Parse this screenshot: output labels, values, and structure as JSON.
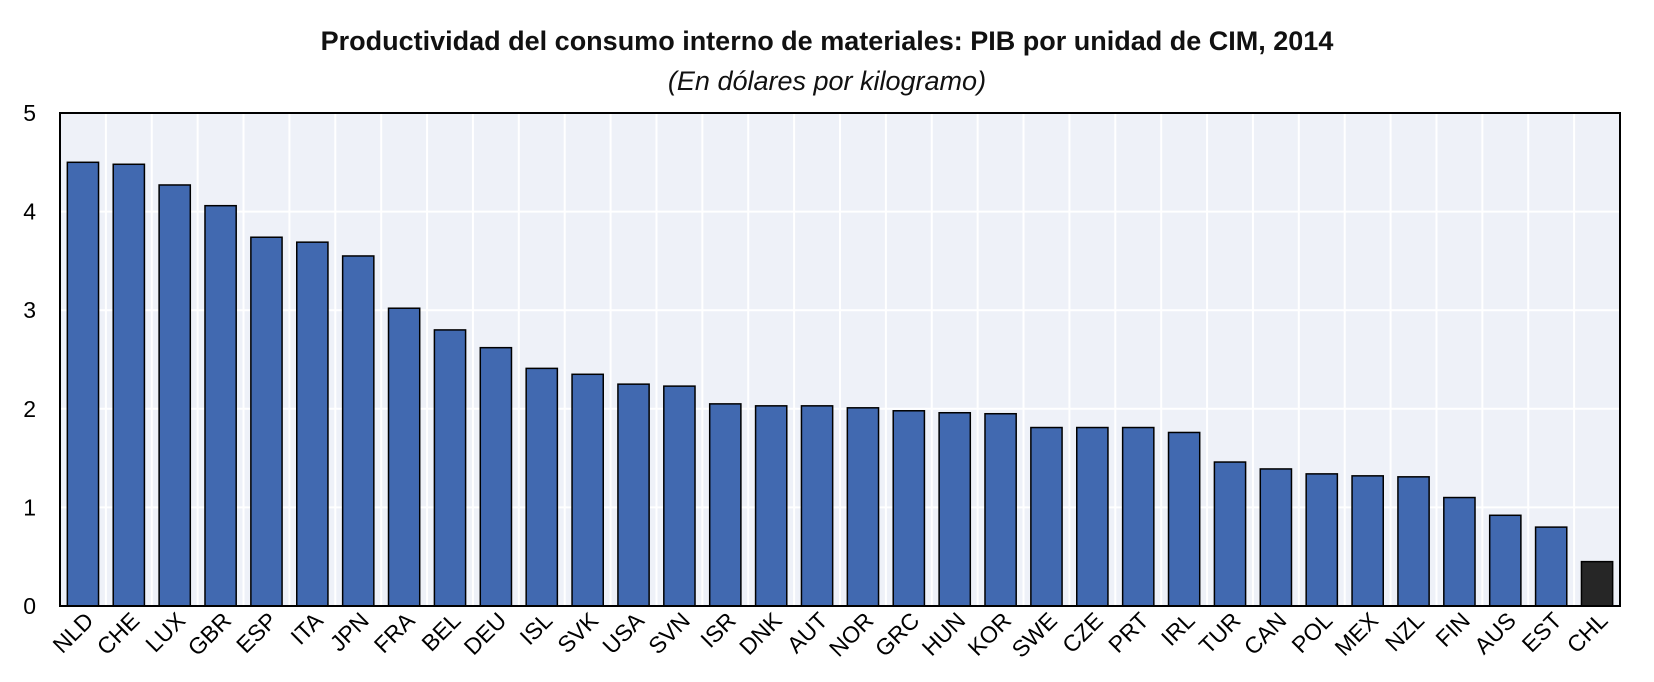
{
  "chart_data": {
    "type": "bar",
    "title": "Productividad del consumo interno de materiales: PIB por unidad de CIM, 2014",
    "subtitle": "(En dólares por kilogramo)",
    "categories": [
      "NLD",
      "CHE",
      "LUX",
      "GBR",
      "ESP",
      "ITA",
      "JPN",
      "FRA",
      "BEL",
      "DEU",
      "ISL",
      "SVK",
      "USA",
      "SVN",
      "ISR",
      "DNK",
      "AUT",
      "NOR",
      "GRC",
      "HUN",
      "KOR",
      "SWE",
      "CZE",
      "PRT",
      "IRL",
      "TUR",
      "CAN",
      "POL",
      "MEX",
      "NZL",
      "FIN",
      "AUS",
      "EST",
      "CHL"
    ],
    "values": [
      4.5,
      4.48,
      4.27,
      4.06,
      3.74,
      3.69,
      3.55,
      3.02,
      2.8,
      2.62,
      2.41,
      2.35,
      2.25,
      2.23,
      2.05,
      2.03,
      2.03,
      2.01,
      1.98,
      1.96,
      1.95,
      1.81,
      1.81,
      1.81,
      1.76,
      1.46,
      1.39,
      1.34,
      1.32,
      1.31,
      1.1,
      0.92,
      0.8,
      0.45
    ],
    "highlight": "CHL",
    "ylim": [
      0,
      5
    ],
    "yticks": [
      "0",
      "1",
      "2",
      "3",
      "4",
      "5"
    ],
    "xlabel": "",
    "ylabel": "",
    "grid": true,
    "colors": {
      "bar": "#4169B0",
      "highlight": "#262626",
      "plot_bg": "#EEF1F8",
      "grid": "#FFFFFF",
      "bar_edge": "#000000"
    }
  }
}
